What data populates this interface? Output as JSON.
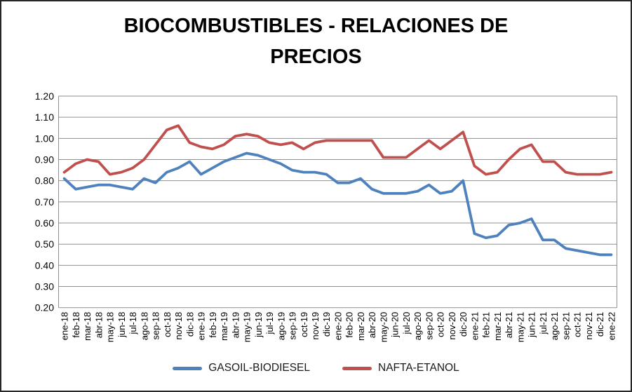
{
  "chart_data": {
    "type": "line",
    "title": "BIOCOMBUSTIBLES - RELACIONES DE PRECIOS",
    "categories": [
      "ene-18",
      "feb-18",
      "mar-18",
      "abr-18",
      "may-18",
      "jun-18",
      "jul-18",
      "ago-18",
      "sep-18",
      "oct-18",
      "nov-18",
      "dic-18",
      "ene-19",
      "feb-19",
      "mar-19",
      "abr-19",
      "may-19",
      "jun-19",
      "jul-19",
      "ago-19",
      "sep-19",
      "oct-19",
      "nov-19",
      "dic-19",
      "ene-20",
      "feb-20",
      "mar-20",
      "abr-20",
      "may-20",
      "jun-20",
      "jul-20",
      "ago-20",
      "sep-20",
      "oct-20",
      "nov-20",
      "dic-20",
      "ene-21",
      "feb-21",
      "mar-21",
      "abr-21",
      "may-21",
      "jun-21",
      "jul-21",
      "ago-21",
      "sep-21",
      "oct-21",
      "nov-21",
      "dic-21",
      "ene-22"
    ],
    "series": [
      {
        "name": "GASOIL-BIODIESEL",
        "color": "#4F81BD",
        "values": [
          0.81,
          0.76,
          0.77,
          0.78,
          0.78,
          0.77,
          0.76,
          0.81,
          0.79,
          0.84,
          0.86,
          0.89,
          0.83,
          0.86,
          0.89,
          0.91,
          0.93,
          0.92,
          0.9,
          0.88,
          0.85,
          0.84,
          0.84,
          0.83,
          0.79,
          0.79,
          0.81,
          0.76,
          0.74,
          0.74,
          0.74,
          0.75,
          0.78,
          0.74,
          0.75,
          0.8,
          0.55,
          0.53,
          0.54,
          0.59,
          0.6,
          0.62,
          0.52,
          0.52,
          0.48,
          0.47,
          0.46,
          0.45,
          0.45
        ]
      },
      {
        "name": "NAFTA-ETANOL",
        "color": "#C0504D",
        "values": [
          0.84,
          0.88,
          0.9,
          0.89,
          0.83,
          0.84,
          0.86,
          0.9,
          0.97,
          1.04,
          1.06,
          0.98,
          0.96,
          0.95,
          0.97,
          1.01,
          1.02,
          1.01,
          0.98,
          0.97,
          0.98,
          0.95,
          0.98,
          0.99,
          0.99,
          0.99,
          0.99,
          0.99,
          0.91,
          0.91,
          0.91,
          0.95,
          0.99,
          0.95,
          0.99,
          1.03,
          0.87,
          0.83,
          0.84,
          0.9,
          0.95,
          0.97,
          0.89,
          0.89,
          0.84,
          0.83,
          0.83,
          0.83,
          0.84
        ]
      }
    ],
    "xlabel": "",
    "ylabel": "",
    "ylim": [
      0.2,
      1.2
    ],
    "ytick_step": 0.1,
    "ytick_labels": [
      "1.20",
      "1.10",
      "1.00",
      "0.90",
      "0.80",
      "0.70",
      "0.60",
      "0.50",
      "0.40",
      "0.30",
      "0.20"
    ],
    "grid": true,
    "legend_position": "bottom"
  }
}
